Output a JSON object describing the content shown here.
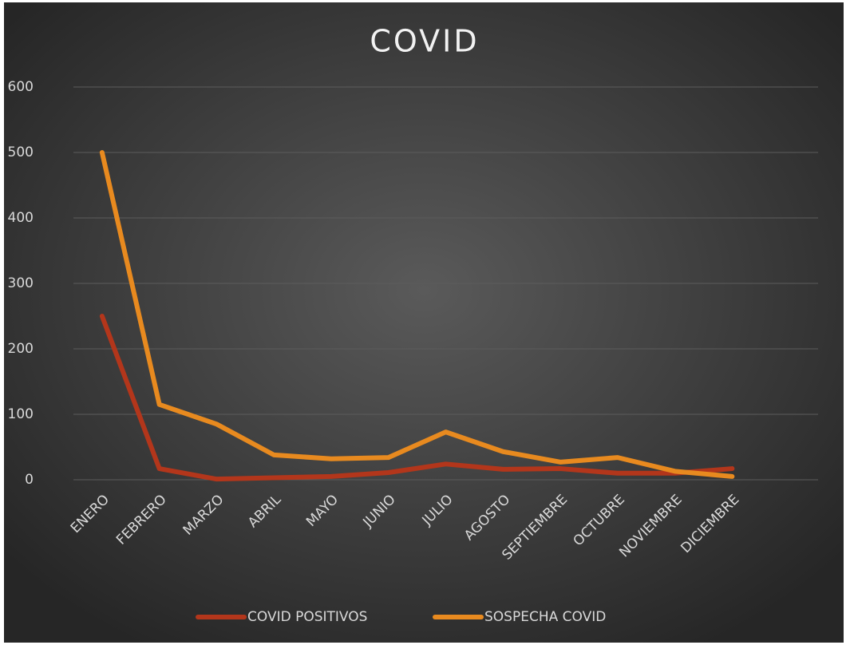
{
  "chart_data": {
    "type": "line",
    "title": "COVID",
    "categories": [
      "ENERO",
      "FEBRERO",
      "MARZO",
      "ABRIL",
      "MAYO",
      "JUNIO",
      "JULIO",
      "AGOSTO",
      "SEPTIEMBRE",
      "OCTUBRE",
      "NOVIEMBRE",
      "DICIEMBRE",
      null
    ],
    "series": [
      {
        "name": "COVID POSITIVOS",
        "color": "#b3361b",
        "values": [
          250,
          17,
          1,
          3,
          5,
          11,
          24,
          16,
          17,
          10,
          10,
          17,
          null
        ]
      },
      {
        "name": "SOSPECHA COVID",
        "color": "#e88a1f",
        "values": [
          500,
          115,
          85,
          38,
          32,
          34,
          73,
          43,
          27,
          34,
          13,
          5,
          null
        ]
      }
    ],
    "ylim": [
      0,
      600
    ],
    "yticks": [
      0,
      100,
      200,
      300,
      400,
      500,
      600
    ],
    "grid": true,
    "legend": "bottom"
  }
}
